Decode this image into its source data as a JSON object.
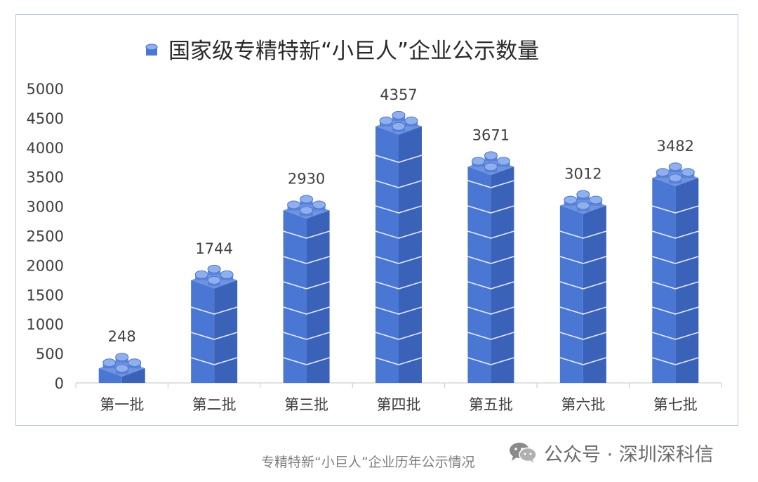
{
  "chart_data": {
    "type": "bar",
    "title": "国家级专精特新“小巨人”企业公示数量",
    "categories": [
      "第一批",
      "第二批",
      "第三批",
      "第四批",
      "第五批",
      "第六批",
      "第七批"
    ],
    "values": [
      248,
      1744,
      2930,
      4357,
      3671,
      3012,
      3482
    ],
    "data_labels": [
      "248",
      "1744",
      "2930",
      "4357",
      "3671",
      "3012",
      "3482"
    ],
    "ylim": [
      0,
      5000
    ],
    "yticks": [
      "0",
      "500",
      "1000",
      "1500",
      "2000",
      "2500",
      "3000",
      "3500",
      "4000",
      "4500",
      "5000"
    ],
    "grid": false,
    "legend": "none",
    "bar_style": "stacked-brick",
    "colors": {
      "front": "#4a77d4",
      "side": "#3a62b8",
      "top": "#6e93e0",
      "stud": "#8fb0ec",
      "stud_side": "#5a82d6",
      "brick_line": "#ffffff",
      "axis_text": "#404040"
    }
  },
  "caption": "专精特新“小巨人”企业历年公示情况",
  "watermark": {
    "icon": "wechat-icon",
    "text": "公众号 · 深圳深科信"
  }
}
